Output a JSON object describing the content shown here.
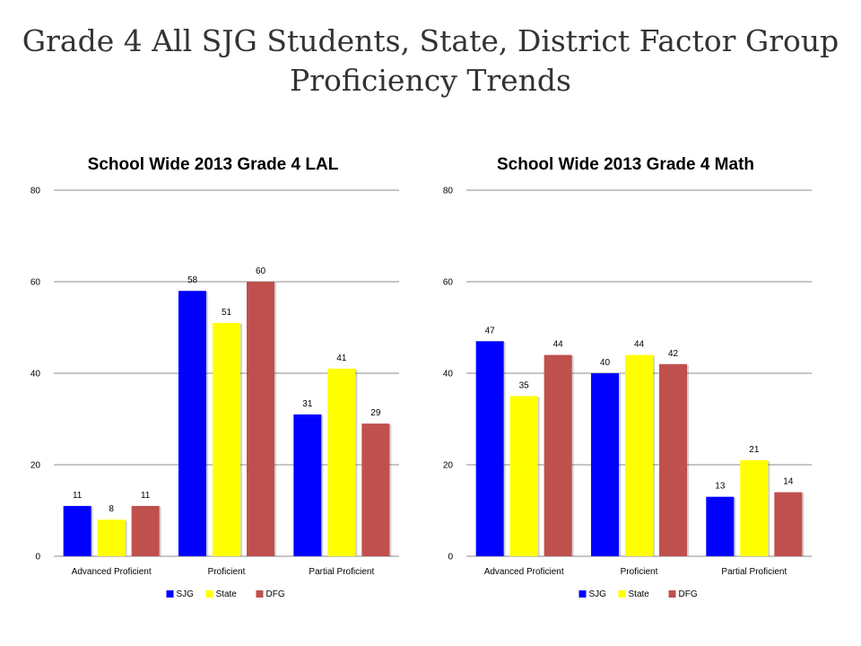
{
  "slide": {
    "title_line1": "Grade 4 All SJG Students, State, District Factor Group",
    "title_line2": "Proficiency Trends"
  },
  "chart_data": [
    {
      "type": "bar",
      "title": "School Wide 2013 Grade 4 LAL",
      "categories": [
        "Advanced Proficient",
        "Proficient",
        "Partial Proficient"
      ],
      "series": [
        {
          "name": "SJG",
          "values": [
            11,
            58,
            31
          ],
          "color": "#0000ff"
        },
        {
          "name": "State",
          "values": [
            8,
            51,
            41
          ],
          "color": "#ffff00"
        },
        {
          "name": "DFG",
          "values": [
            11,
            60,
            29
          ],
          "color": "#c0504d"
        }
      ],
      "ylim": [
        0,
        80
      ],
      "yticks": [
        0,
        20,
        40,
        60,
        80
      ],
      "xlabel": "",
      "ylabel": "",
      "grid": true,
      "legend": "bottom"
    },
    {
      "type": "bar",
      "title": "School Wide 2013 Grade 4 Math",
      "categories": [
        "Advanced Proficient",
        "Proficient",
        "Partial Proficient"
      ],
      "series": [
        {
          "name": "SJG",
          "values": [
            47,
            40,
            13
          ],
          "color": "#0000ff"
        },
        {
          "name": "State",
          "values": [
            35,
            44,
            21
          ],
          "color": "#ffff00"
        },
        {
          "name": "DFG",
          "values": [
            44,
            42,
            14
          ],
          "color": "#c0504d"
        }
      ],
      "ylim": [
        0,
        80
      ],
      "yticks": [
        0,
        20,
        40,
        60,
        80
      ],
      "xlabel": "",
      "ylabel": "",
      "grid": true,
      "legend": "bottom"
    }
  ]
}
